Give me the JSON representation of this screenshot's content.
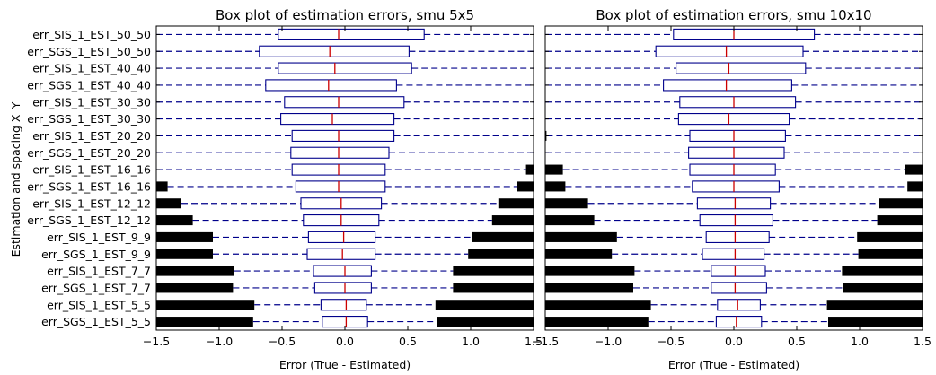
{
  "figure": {
    "ylabel": "Estimation and spacing X_Y"
  },
  "chart_data": [
    {
      "type": "box",
      "title": "Box plot of estimation errors, smu 5x5",
      "xlabel": "Error (True - Estimated)",
      "xlim": [
        -1.5,
        1.5
      ],
      "xticks": [
        -1.5,
        -1.0,
        -0.5,
        0.0,
        0.5,
        1.0,
        1.5
      ],
      "xtick_labels": [
        "−1.5",
        "−1.0",
        "−0.5",
        "0.0",
        "0.5",
        "1.0",
        "1.5"
      ],
      "grid": false,
      "categories": [
        "err_SIS_1_EST_50_50",
        "err_SGS_1_EST_50_50",
        "err_SIS_1_EST_40_40",
        "err_SGS_1_EST_40_40",
        "err_SIS_1_EST_30_30",
        "err_SGS_1_EST_30_30",
        "err_SIS_1_EST_20_20",
        "err_SGS_1_EST_20_20",
        "err_SIS_1_EST_16_16",
        "err_SGS_1_EST_16_16",
        "err_SIS_1_EST_12_12",
        "err_SGS_1_EST_12_12",
        "err_SIS_1_EST_9_9",
        "err_SGS_1_EST_9_9",
        "err_SIS_1_EST_7_7",
        "err_SGS_1_EST_7_7",
        "err_SIS_1_EST_5_5",
        "err_SGS_1_EST_5_5"
      ],
      "boxes": [
        {
          "q1": -0.53,
          "median": -0.05,
          "q3": 0.63,
          "outliers": []
        },
        {
          "q1": -0.68,
          "median": -0.12,
          "q3": 0.51,
          "outliers": []
        },
        {
          "q1": -0.53,
          "median": -0.08,
          "q3": 0.53,
          "outliers": []
        },
        {
          "q1": -0.63,
          "median": -0.13,
          "q3": 0.41,
          "outliers": []
        },
        {
          "q1": -0.48,
          "median": -0.05,
          "q3": 0.47,
          "outliers": []
        },
        {
          "q1": -0.51,
          "median": -0.1,
          "q3": 0.39,
          "outliers": []
        },
        {
          "q1": -0.42,
          "median": -0.05,
          "q3": 0.39,
          "outliers": []
        },
        {
          "q1": -0.43,
          "median": -0.05,
          "q3": 0.35,
          "outliers": []
        },
        {
          "q1": -0.42,
          "median": -0.05,
          "q3": 0.32,
          "outliers": [
            [
              1.44,
              1.5
            ]
          ]
        },
        {
          "q1": -0.39,
          "median": -0.05,
          "q3": 0.32,
          "outliers": [
            [
              -1.5,
              -1.41
            ],
            [
              1.37,
              1.5
            ]
          ]
        },
        {
          "q1": -0.35,
          "median": -0.03,
          "q3": 0.29,
          "outliers": [
            [
              -1.5,
              -1.3
            ],
            [
              1.22,
              1.5
            ]
          ]
        },
        {
          "q1": -0.33,
          "median": -0.03,
          "q3": 0.27,
          "outliers": [
            [
              -1.5,
              -1.21
            ],
            [
              1.17,
              1.5
            ]
          ]
        },
        {
          "q1": -0.29,
          "median": -0.01,
          "q3": 0.24,
          "outliers": [
            [
              -1.5,
              -1.05
            ],
            [
              1.01,
              1.5
            ]
          ]
        },
        {
          "q1": -0.3,
          "median": -0.02,
          "q3": 0.24,
          "outliers": [
            [
              -1.5,
              -1.05
            ],
            [
              0.98,
              1.5
            ]
          ]
        },
        {
          "q1": -0.25,
          "median": 0.0,
          "q3": 0.21,
          "outliers": [
            [
              -1.5,
              -0.88
            ],
            [
              0.86,
              1.5
            ]
          ]
        },
        {
          "q1": -0.24,
          "median": 0.0,
          "q3": 0.21,
          "outliers": [
            [
              -1.5,
              -0.89
            ],
            [
              0.86,
              1.5
            ]
          ]
        },
        {
          "q1": -0.19,
          "median": 0.01,
          "q3": 0.17,
          "outliers": [
            [
              -1.5,
              -0.72
            ],
            [
              0.72,
              1.5
            ]
          ]
        },
        {
          "q1": -0.18,
          "median": 0.01,
          "q3": 0.18,
          "outliers": [
            [
              -1.5,
              -0.73
            ],
            [
              0.73,
              1.5
            ]
          ]
        }
      ],
      "colors": {
        "box": "#00008b",
        "median": "#cc0000",
        "whisker": "#00008b",
        "outlier": "#000000"
      }
    },
    {
      "type": "box",
      "title": "Box plot of estimation errors, smu 10x10",
      "xlabel": "Error (True - Estimated)",
      "xlim": [
        -1.5,
        1.5
      ],
      "xticks": [
        -1.5,
        -1.0,
        -0.5,
        0.0,
        0.5,
        1.0,
        1.5
      ],
      "xtick_labels": [
        "−1.5",
        "−1.0",
        "−0.5",
        "0.0",
        "0.5",
        "1.0",
        "1.5"
      ],
      "grid": false,
      "categories": [
        "err_SIS_1_EST_50_50",
        "err_SGS_1_EST_50_50",
        "err_SIS_1_EST_40_40",
        "err_SGS_1_EST_40_40",
        "err_SIS_1_EST_30_30",
        "err_SGS_1_EST_30_30",
        "err_SIS_1_EST_20_20",
        "err_SGS_1_EST_20_20",
        "err_SIS_1_EST_16_16",
        "err_SGS_1_EST_16_16",
        "err_SIS_1_EST_12_12",
        "err_SGS_1_EST_12_12",
        "err_SIS_1_EST_9_9",
        "err_SGS_1_EST_9_9",
        "err_SIS_1_EST_7_7",
        "err_SGS_1_EST_7_7",
        "err_SIS_1_EST_5_5",
        "err_SGS_1_EST_5_5"
      ],
      "boxes": [
        {
          "q1": -0.48,
          "median": 0.0,
          "q3": 0.64,
          "outliers": []
        },
        {
          "q1": -0.62,
          "median": -0.06,
          "q3": 0.55,
          "outliers": []
        },
        {
          "q1": -0.46,
          "median": -0.04,
          "q3": 0.57,
          "outliers": []
        },
        {
          "q1": -0.56,
          "median": -0.06,
          "q3": 0.46,
          "outliers": []
        },
        {
          "q1": -0.43,
          "median": 0.0,
          "q3": 0.49,
          "outliers": []
        },
        {
          "q1": -0.44,
          "median": -0.04,
          "q3": 0.44,
          "outliers": []
        },
        {
          "q1": -0.35,
          "median": 0.0,
          "q3": 0.41,
          "outliers": [
            [
              -1.5,
              -1.49
            ]
          ]
        },
        {
          "q1": -0.36,
          "median": 0.0,
          "q3": 0.4,
          "outliers": []
        },
        {
          "q1": -0.35,
          "median": 0.0,
          "q3": 0.33,
          "outliers": [
            [
              -1.5,
              -1.36
            ],
            [
              1.36,
              1.5
            ]
          ]
        },
        {
          "q1": -0.33,
          "median": 0.0,
          "q3": 0.36,
          "outliers": [
            [
              -1.5,
              -1.34
            ],
            [
              1.38,
              1.5
            ]
          ]
        },
        {
          "q1": -0.29,
          "median": 0.01,
          "q3": 0.29,
          "outliers": [
            [
              -1.5,
              -1.16
            ],
            [
              1.15,
              1.5
            ]
          ]
        },
        {
          "q1": -0.27,
          "median": 0.01,
          "q3": 0.31,
          "outliers": [
            [
              -1.5,
              -1.11
            ],
            [
              1.14,
              1.5
            ]
          ]
        },
        {
          "q1": -0.22,
          "median": 0.01,
          "q3": 0.28,
          "outliers": [
            [
              -1.5,
              -0.93
            ],
            [
              0.98,
              1.5
            ]
          ]
        },
        {
          "q1": -0.25,
          "median": 0.01,
          "q3": 0.24,
          "outliers": [
            [
              -1.5,
              -0.97
            ],
            [
              0.99,
              1.5
            ]
          ]
        },
        {
          "q1": -0.18,
          "median": 0.01,
          "q3": 0.25,
          "outliers": [
            [
              -1.5,
              -0.79
            ],
            [
              0.86,
              1.5
            ]
          ]
        },
        {
          "q1": -0.18,
          "median": 0.01,
          "q3": 0.26,
          "outliers": [
            [
              -1.5,
              -0.8
            ],
            [
              0.87,
              1.5
            ]
          ]
        },
        {
          "q1": -0.13,
          "median": 0.03,
          "q3": 0.21,
          "outliers": [
            [
              -1.5,
              -0.66
            ],
            [
              0.74,
              1.5
            ]
          ]
        },
        {
          "q1": -0.14,
          "median": 0.02,
          "q3": 0.22,
          "outliers": [
            [
              -1.5,
              -0.68
            ],
            [
              0.75,
              1.5
            ]
          ]
        }
      ],
      "colors": {
        "box": "#00008b",
        "median": "#cc0000",
        "whisker": "#00008b",
        "outlier": "#000000"
      }
    }
  ]
}
